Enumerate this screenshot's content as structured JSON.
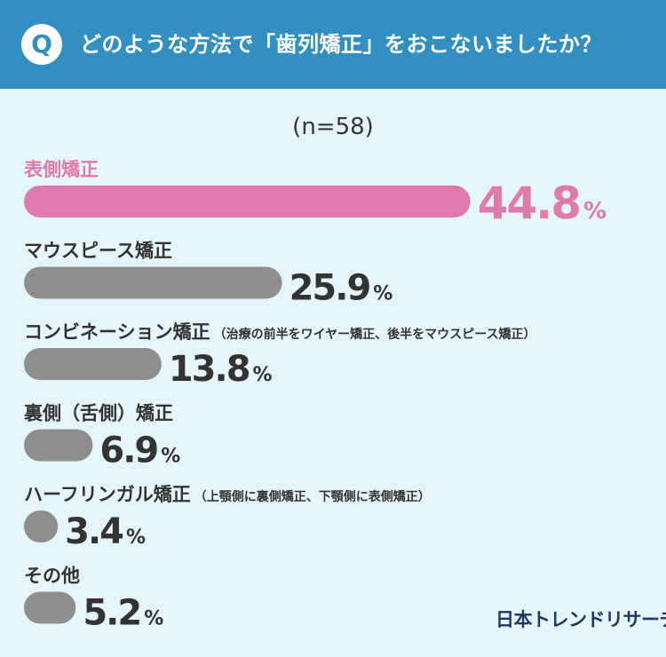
{
  "header": {
    "q_mark": "Q",
    "question": "どのような方法で「歯列矯正」をおこないましたか？"
  },
  "sample_label": "(n=58)",
  "chart_data": {
    "type": "bar",
    "orientation": "horizontal",
    "unit": "%",
    "categories": [
      {
        "label": "表側矯正",
        "note": ""
      },
      {
        "label": "マウスピース矯正",
        "note": ""
      },
      {
        "label": "コンビネーション矯正",
        "note": "（治療の前半をワイヤー矯正、後半をマウスピース矯正）"
      },
      {
        "label": "裏側（舌側）矯正",
        "note": ""
      },
      {
        "label": "ハーフリンガル矯正",
        "note": "（上顎側に裏側矯正、下顎側に表側矯正）"
      },
      {
        "label": "その他",
        "note": ""
      }
    ],
    "values": [
      44.8,
      25.9,
      13.8,
      6.9,
      3.4,
      5.2
    ],
    "value_labels": [
      "44.8",
      "25.9",
      "13.8",
      "6.9",
      "3.4",
      "5.2"
    ],
    "highlight_index": 0,
    "colors": {
      "highlight": "#e07aab",
      "default": "#8f8d8e"
    },
    "xlim": [
      0,
      100
    ]
  },
  "logo": "日本トレンドリサーチ"
}
